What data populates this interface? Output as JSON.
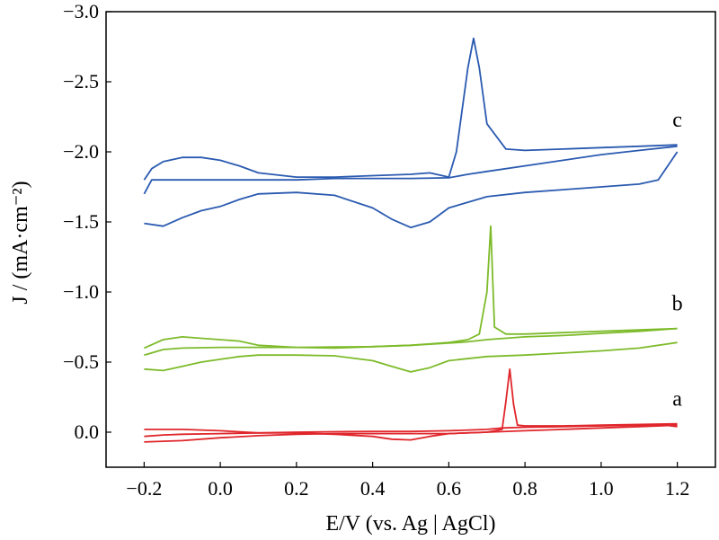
{
  "chart_data": {
    "type": "line",
    "xlabel": "E/V (vs. Ag | AgCl)",
    "ylabel": "J / (mA·cm⁻²)",
    "xlim": [
      -0.3,
      1.3
    ],
    "ylim": [
      0.25,
      -3.0
    ],
    "y_inverted": true,
    "grid": false,
    "x_ticks": [
      -0.2,
      0.0,
      0.2,
      0.4,
      0.6,
      0.8,
      1.0,
      1.2
    ],
    "x_tick_labels": [
      "−0.2",
      "0.0",
      "0.2",
      "0.4",
      "0.6",
      "0.8",
      "1.0",
      "1.2"
    ],
    "y_ticks": [
      0.0,
      -0.5,
      -1.0,
      -1.5,
      -2.0,
      -2.5,
      -3.0
    ],
    "y_tick_labels": [
      "0.0",
      "−0.5",
      "−1.0",
      "−1.5",
      "−2.0",
      "−2.5",
      "−3.0"
    ],
    "series": [
      {
        "label": "a",
        "color": "#e0262b",
        "forward": [
          [
            -0.2,
            0.03
          ],
          [
            -0.15,
            0.02
          ],
          [
            -0.1,
            0.015
          ],
          [
            0.0,
            0.01
          ],
          [
            0.1,
            0.005
          ],
          [
            0.2,
            0.0
          ],
          [
            0.3,
            -0.003
          ],
          [
            0.4,
            -0.005
          ],
          [
            0.5,
            -0.005
          ],
          [
            0.6,
            -0.01
          ],
          [
            0.7,
            -0.02
          ],
          [
            0.74,
            -0.03
          ],
          [
            0.8,
            -0.035
          ],
          [
            0.9,
            -0.04
          ],
          [
            1.0,
            -0.045
          ],
          [
            1.1,
            -0.05
          ],
          [
            1.17,
            -0.05
          ],
          [
            1.2,
            -0.04
          ]
        ],
        "backward": [
          [
            1.2,
            -0.06
          ],
          [
            1.1,
            -0.055
          ],
          [
            1.0,
            -0.05
          ],
          [
            0.9,
            -0.045
          ],
          [
            0.8,
            -0.045
          ],
          [
            0.78,
            -0.05
          ],
          [
            0.77,
            -0.2
          ],
          [
            0.76,
            -0.45
          ],
          [
            0.75,
            -0.22
          ],
          [
            0.74,
            -0.02
          ],
          [
            0.7,
            0.0
          ],
          [
            0.6,
            0.01
          ],
          [
            0.55,
            0.03
          ],
          [
            0.5,
            0.055
          ],
          [
            0.45,
            0.05
          ],
          [
            0.4,
            0.03
          ],
          [
            0.3,
            0.015
          ],
          [
            0.2,
            0.005
          ],
          [
            0.1,
            0.005
          ],
          [
            0.0,
            -0.01
          ],
          [
            -0.1,
            -0.02
          ],
          [
            -0.2,
            -0.02
          ]
        ],
        "extra": [
          [
            -0.2,
            0.07
          ],
          [
            -0.1,
            0.06
          ],
          [
            0.0,
            0.04
          ],
          [
            0.1,
            0.025
          ],
          [
            0.2,
            0.015
          ],
          [
            0.3,
            0.01
          ],
          [
            0.4,
            0.01
          ],
          [
            0.5,
            0.01
          ],
          [
            0.6,
            0.01
          ],
          [
            0.7,
            0.0
          ],
          [
            0.8,
            -0.01
          ],
          [
            0.9,
            -0.02
          ],
          [
            1.0,
            -0.03
          ],
          [
            1.1,
            -0.04
          ],
          [
            1.2,
            -0.05
          ]
        ]
      },
      {
        "label": "b",
        "color": "#7dbb2a",
        "forward": [
          [
            -0.2,
            -0.55
          ],
          [
            -0.15,
            -0.59
          ],
          [
            -0.1,
            -0.6
          ],
          [
            0.0,
            -0.605
          ],
          [
            0.1,
            -0.605
          ],
          [
            0.2,
            -0.605
          ],
          [
            0.3,
            -0.608
          ],
          [
            0.4,
            -0.61
          ],
          [
            0.5,
            -0.62
          ],
          [
            0.6,
            -0.635
          ],
          [
            0.65,
            -0.645
          ],
          [
            0.7,
            -0.66
          ],
          [
            0.8,
            -0.68
          ],
          [
            0.9,
            -0.69
          ],
          [
            1.0,
            -0.705
          ],
          [
            1.1,
            -0.72
          ],
          [
            1.2,
            -0.74
          ]
        ],
        "backward": [
          [
            1.2,
            -0.74
          ],
          [
            1.1,
            -0.73
          ],
          [
            1.0,
            -0.72
          ],
          [
            0.9,
            -0.71
          ],
          [
            0.8,
            -0.7
          ],
          [
            0.75,
            -0.7
          ],
          [
            0.72,
            -0.75
          ],
          [
            0.71,
            -1.47
          ],
          [
            0.7,
            -1.0
          ],
          [
            0.68,
            -0.7
          ],
          [
            0.65,
            -0.66
          ],
          [
            0.6,
            -0.64
          ],
          [
            0.5,
            -0.62
          ],
          [
            0.4,
            -0.61
          ],
          [
            0.3,
            -0.6
          ],
          [
            0.2,
            -0.605
          ],
          [
            0.1,
            -0.62
          ],
          [
            0.05,
            -0.65
          ],
          [
            -0.05,
            -0.67
          ],
          [
            -0.1,
            -0.68
          ],
          [
            -0.15,
            -0.66
          ],
          [
            -0.2,
            -0.6
          ]
        ],
        "extra": [
          [
            -0.2,
            -0.45
          ],
          [
            -0.15,
            -0.44
          ],
          [
            -0.1,
            -0.47
          ],
          [
            -0.05,
            -0.5
          ],
          [
            0.0,
            -0.52
          ],
          [
            0.05,
            -0.54
          ],
          [
            0.1,
            -0.55
          ],
          [
            0.2,
            -0.55
          ],
          [
            0.3,
            -0.545
          ],
          [
            0.4,
            -0.51
          ],
          [
            0.45,
            -0.47
          ],
          [
            0.5,
            -0.43
          ],
          [
            0.55,
            -0.46
          ],
          [
            0.6,
            -0.51
          ],
          [
            0.7,
            -0.54
          ],
          [
            0.8,
            -0.55
          ],
          [
            0.9,
            -0.565
          ],
          [
            1.0,
            -0.58
          ],
          [
            1.1,
            -0.6
          ],
          [
            1.2,
            -0.64
          ]
        ]
      },
      {
        "label": "c",
        "color": "#2a5ab0",
        "forward": [
          [
            -0.2,
            -1.7
          ],
          [
            -0.18,
            -1.8
          ],
          [
            -0.15,
            -1.8
          ],
          [
            -0.1,
            -1.8
          ],
          [
            0.0,
            -1.8
          ],
          [
            0.1,
            -1.8
          ],
          [
            0.2,
            -1.8
          ],
          [
            0.3,
            -1.81
          ],
          [
            0.4,
            -1.81
          ],
          [
            0.5,
            -1.81
          ],
          [
            0.6,
            -1.815
          ],
          [
            0.65,
            -1.84
          ],
          [
            0.7,
            -1.86
          ],
          [
            0.8,
            -1.9
          ],
          [
            0.9,
            -1.94
          ],
          [
            1.0,
            -1.98
          ],
          [
            1.1,
            -2.01
          ],
          [
            1.2,
            -2.04
          ]
        ],
        "backward": [
          [
            1.2,
            -2.05
          ],
          [
            1.1,
            -2.04
          ],
          [
            1.0,
            -2.03
          ],
          [
            0.9,
            -2.02
          ],
          [
            0.8,
            -2.01
          ],
          [
            0.75,
            -2.02
          ],
          [
            0.7,
            -2.2
          ],
          [
            0.68,
            -2.6
          ],
          [
            0.665,
            -2.81
          ],
          [
            0.65,
            -2.6
          ],
          [
            0.62,
            -2.0
          ],
          [
            0.6,
            -1.82
          ],
          [
            0.55,
            -1.85
          ],
          [
            0.5,
            -1.84
          ],
          [
            0.4,
            -1.83
          ],
          [
            0.3,
            -1.82
          ],
          [
            0.2,
            -1.82
          ],
          [
            0.1,
            -1.85
          ],
          [
            0.05,
            -1.9
          ],
          [
            0.0,
            -1.94
          ],
          [
            -0.05,
            -1.96
          ],
          [
            -0.1,
            -1.96
          ],
          [
            -0.15,
            -1.93
          ],
          [
            -0.18,
            -1.88
          ],
          [
            -0.2,
            -1.8
          ]
        ],
        "extra": [
          [
            -0.2,
            -1.49
          ],
          [
            -0.15,
            -1.47
          ],
          [
            -0.1,
            -1.53
          ],
          [
            -0.05,
            -1.58
          ],
          [
            0.0,
            -1.61
          ],
          [
            0.05,
            -1.66
          ],
          [
            0.1,
            -1.7
          ],
          [
            0.2,
            -1.71
          ],
          [
            0.3,
            -1.69
          ],
          [
            0.4,
            -1.6
          ],
          [
            0.45,
            -1.52
          ],
          [
            0.5,
            -1.46
          ],
          [
            0.55,
            -1.5
          ],
          [
            0.6,
            -1.6
          ],
          [
            0.7,
            -1.68
          ],
          [
            0.8,
            -1.71
          ],
          [
            0.9,
            -1.73
          ],
          [
            1.0,
            -1.75
          ],
          [
            1.1,
            -1.77
          ],
          [
            1.15,
            -1.8
          ],
          [
            1.2,
            -2.0
          ]
        ]
      }
    ]
  }
}
